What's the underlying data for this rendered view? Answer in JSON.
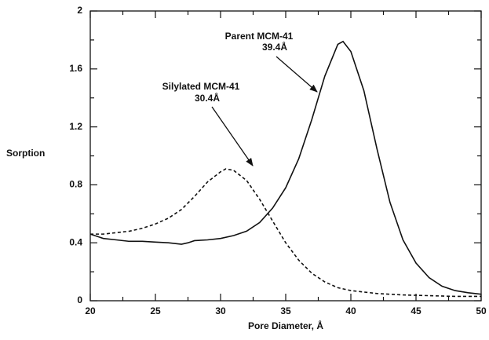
{
  "chart_data": {
    "type": "line",
    "x_label": "Pore Diameter, Å",
    "y_label": "Sorption",
    "annotations": [
      {
        "name": "Parent MCM-41",
        "value": "39.4Å"
      },
      {
        "name": "Silylated MCM-41",
        "value": "30.4Å"
      }
    ],
    "xlim": [
      20,
      50
    ],
    "xticks": [
      20,
      25,
      30,
      35,
      40,
      45,
      50
    ],
    "ylim": [
      0,
      2
    ],
    "yticks": [
      0,
      0.4,
      0.8,
      1.2,
      1.6,
      2
    ],
    "series": [
      {
        "name": "Parent MCM-41",
        "color": "#111111",
        "dash": false,
        "x": [
          20,
          21,
          22,
          23,
          24,
          25,
          26,
          27,
          27.5,
          28,
          29,
          30,
          31,
          32,
          33,
          34,
          35,
          36,
          37,
          38,
          39,
          39.4,
          40,
          41,
          42,
          43,
          44,
          45,
          46,
          47,
          48,
          49,
          50
        ],
        "values": [
          0.46,
          0.43,
          0.42,
          0.41,
          0.41,
          0.405,
          0.4,
          0.39,
          0.4,
          0.415,
          0.42,
          0.43,
          0.45,
          0.48,
          0.54,
          0.64,
          0.78,
          0.98,
          1.25,
          1.55,
          1.77,
          1.79,
          1.72,
          1.45,
          1.05,
          0.68,
          0.42,
          0.26,
          0.16,
          0.1,
          0.07,
          0.055,
          0.045
        ]
      },
      {
        "name": "Silylated MCM-41",
        "color": "#111111",
        "dash": true,
        "x": [
          20,
          21,
          22,
          23,
          24,
          25,
          26,
          27,
          28,
          29,
          30,
          30.4,
          31,
          32,
          33,
          34,
          35,
          36,
          37,
          38,
          39,
          40,
          42,
          44,
          46,
          48,
          50
        ],
        "values": [
          0.46,
          0.46,
          0.47,
          0.48,
          0.5,
          0.53,
          0.57,
          0.63,
          0.72,
          0.82,
          0.89,
          0.91,
          0.9,
          0.83,
          0.7,
          0.55,
          0.4,
          0.28,
          0.19,
          0.13,
          0.09,
          0.07,
          0.05,
          0.04,
          0.035,
          0.03,
          0.03
        ]
      }
    ]
  }
}
